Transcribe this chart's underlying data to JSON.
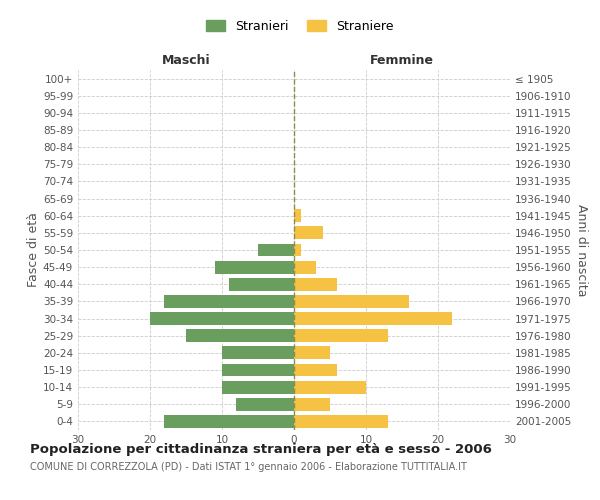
{
  "age_groups": [
    "0-4",
    "5-9",
    "10-14",
    "15-19",
    "20-24",
    "25-29",
    "30-34",
    "35-39",
    "40-44",
    "45-49",
    "50-54",
    "55-59",
    "60-64",
    "65-69",
    "70-74",
    "75-79",
    "80-84",
    "85-89",
    "90-94",
    "95-99",
    "100+"
  ],
  "birth_years": [
    "2001-2005",
    "1996-2000",
    "1991-1995",
    "1986-1990",
    "1981-1985",
    "1976-1980",
    "1971-1975",
    "1966-1970",
    "1961-1965",
    "1956-1960",
    "1951-1955",
    "1946-1950",
    "1941-1945",
    "1936-1940",
    "1931-1935",
    "1926-1930",
    "1921-1925",
    "1916-1920",
    "1911-1915",
    "1906-1910",
    "≤ 1905"
  ],
  "males": [
    18,
    8,
    10,
    10,
    10,
    15,
    20,
    18,
    9,
    11,
    5,
    0,
    0,
    0,
    0,
    0,
    0,
    0,
    0,
    0,
    0
  ],
  "females": [
    13,
    5,
    10,
    6,
    5,
    13,
    22,
    16,
    6,
    3,
    1,
    4,
    1,
    0,
    0,
    0,
    0,
    0,
    0,
    0,
    0
  ],
  "male_color": "#6a9e5f",
  "female_color": "#f5c244",
  "background_color": "#ffffff",
  "grid_color": "#cccccc",
  "bar_height": 0.75,
  "xlim": 30,
  "title": "Popolazione per cittadinanza straniera per età e sesso - 2006",
  "subtitle": "COMUNE DI CORREZZOLA (PD) - Dati ISTAT 1° gennaio 2006 - Elaborazione TUTTITALIA.IT",
  "ylabel_left": "Fasce di età",
  "ylabel_right": "Anni di nascita",
  "xlabel_left": "Maschi",
  "xlabel_right": "Femmine",
  "legend_male": "Stranieri",
  "legend_female": "Straniere",
  "center_line_color": "#8b8b4e",
  "title_fontsize": 9.5,
  "subtitle_fontsize": 7,
  "axis_label_fontsize": 9,
  "tick_fontsize": 7.5,
  "label_color": "#555555",
  "header_color": "#333333"
}
